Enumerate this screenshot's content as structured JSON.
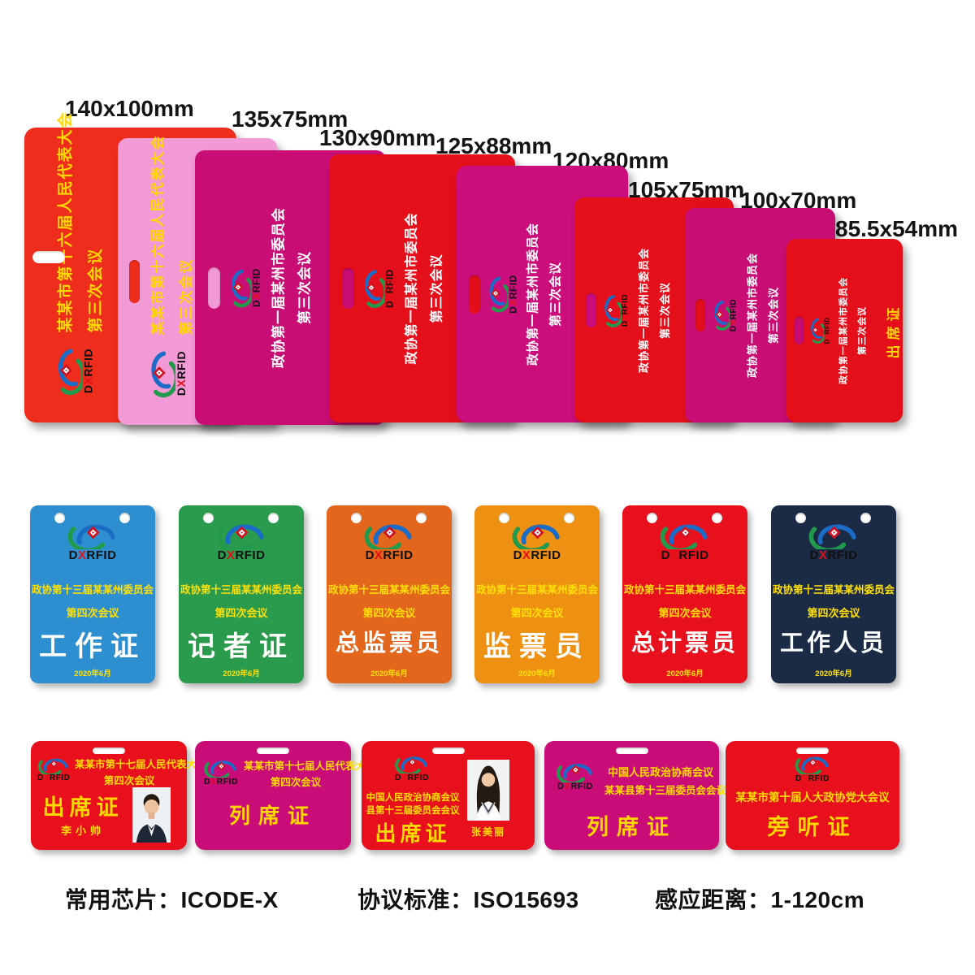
{
  "brand": {
    "d": "D",
    "x": "X",
    "rfid": "RFID"
  },
  "top_row": [
    {
      "size": "140x100mm",
      "line1": "某某市第十六届人民代表大会",
      "line2": "第三次会议",
      "color": "#ee2d1d",
      "text_color": "#ffd800"
    },
    {
      "size": "135x75mm",
      "line1": "某某市第十六届人民代表大会",
      "line2": "第三次会议",
      "color": "#f19ad5",
      "text_color": "#ffd800"
    },
    {
      "size": "130x90mm",
      "line1": "政协第一届某州市委员会",
      "line2": "第三次会议",
      "color": "#c80d74",
      "text_color": "#ffffff"
    },
    {
      "size": "125x88mm",
      "line1": "政协第一届某州市委员会",
      "line2": "第三次会议",
      "color": "#e50f1b",
      "text_color": "#ffffff"
    },
    {
      "size": "120x80mm",
      "line1": "政协第一届某州市委员会",
      "line2": "第三次会议",
      "color": "#cb0e7b",
      "text_color": "#ffffff"
    },
    {
      "size": "105x75mm",
      "line1": "政协第一届某州市委员会",
      "line2": "第三次会议",
      "color": "#e50f1b",
      "text_color": "#ffffff"
    },
    {
      "size": "100x70mm",
      "line1": "政协第一届某州市委员会",
      "line2": "第三次会议",
      "color": "#c80d74",
      "text_color": "#ffffff"
    },
    {
      "size": "85.5x54mm",
      "line1": "政协第一届某州市委员会",
      "line2": "第三次会议",
      "extra": "出席证",
      "color": "#e50f1b",
      "text_color": "#ffffff",
      "extra_color": "#ffd800"
    }
  ],
  "middle_row": [
    {
      "org": "政协第十三届某某州委员会",
      "session": "第四次会议",
      "title": "工作证",
      "date": "2020年6月",
      "color": "#2e8fd0"
    },
    {
      "org": "政协第十三届某某州委员会",
      "session": "第四次会议",
      "title": "记者证",
      "date": "2020年6月",
      "color": "#2a9a4c"
    },
    {
      "org": "政协第十三届某某州委员会",
      "session": "第四次会议",
      "title": "总监票员",
      "date": "2020年6月",
      "color": "#e2661c"
    },
    {
      "org": "政协第十三届某某州委员会",
      "session": "第四次会议",
      "title": "监票员",
      "date": "2020年6月",
      "color": "#ee9012"
    },
    {
      "org": "政协第十三届某某州委员会",
      "session": "第四次会议",
      "title": "总计票员",
      "date": "2020年6月",
      "color": "#e7101c"
    },
    {
      "org": "政协第十三届某某州委员会",
      "session": "第四次会议",
      "title": "工作人员",
      "date": "2020年6月",
      "color": "#1c2b45"
    }
  ],
  "bottom_row": [
    {
      "line1": "某某市第十七届人民代表大会",
      "line2": "第四次会议",
      "title": "出席证",
      "name": "李小帅",
      "photo": "male",
      "color": "#e7101c"
    },
    {
      "line1": "某某市第十七届人民代表大会",
      "line2": "第四次会议",
      "title": "列席证",
      "color": "#ca0c78"
    },
    {
      "line1": "中国人民政治协商会议",
      "line2": "县第十三届委员会会议",
      "title": "出席证",
      "name": "张美丽",
      "photo": "female",
      "color": "#e7101c"
    },
    {
      "line1": "中国人民政治协商会议",
      "line2": "某某县第十三届委员会会议",
      "title": "列席证",
      "color": "#ca0c78"
    },
    {
      "line1": "某某市第十届人大政协党大会议",
      "title": "旁听证",
      "color": "#e7101c"
    }
  ],
  "footer": [
    {
      "label": "常用芯片：",
      "value": "ICODE-X"
    },
    {
      "label": "协议标准：",
      "value": "ISO15693"
    },
    {
      "label": "感应距离：",
      "value": "1-120cm"
    }
  ]
}
